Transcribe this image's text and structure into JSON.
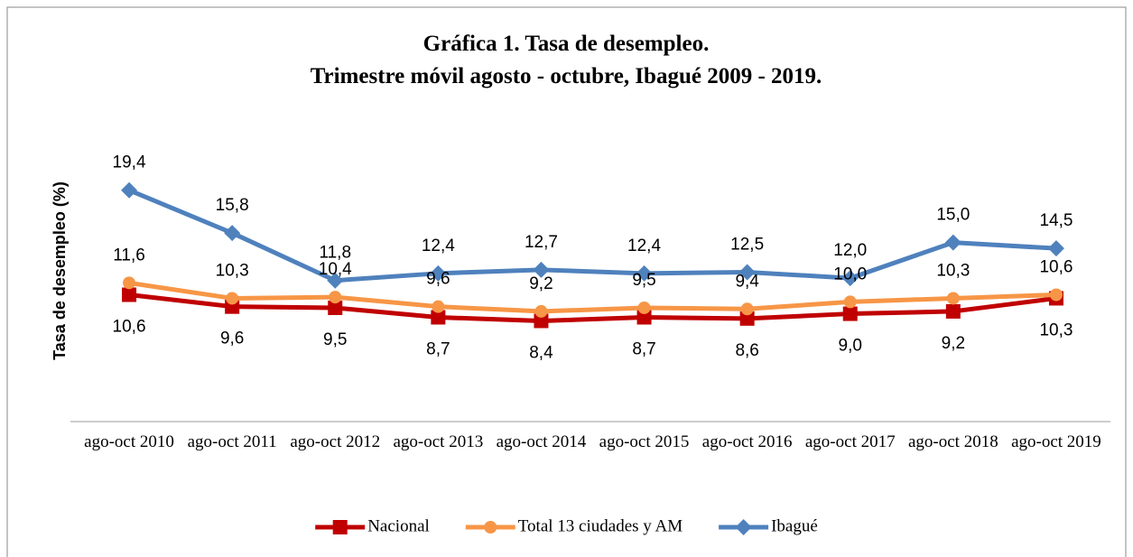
{
  "chart_data": {
    "type": "line",
    "title": [
      "Gráfica 1. Tasa de desempleo.",
      "Trimestre móvil agosto - octubre, Ibagué 2009 - 2019."
    ],
    "y_label": "Tasa de desempleo (%)",
    "categories": [
      "ago-oct 2010",
      "ago-oct 2011",
      "ago-oct 2012",
      "ago-oct 2013",
      "ago-oct 2014",
      "ago-oct 2015",
      "ago-oct 2016",
      "ago-oct 2017",
      "ago-oct 2018",
      "ago-oct 2019"
    ],
    "ylim": [
      0,
      25
    ],
    "legend": "bottom",
    "series": [
      {
        "name": "Nacional",
        "color": "#c00000",
        "marker": "square",
        "label_position": "below",
        "values": [
          10.6,
          9.6,
          9.5,
          8.7,
          8.4,
          8.7,
          8.6,
          9.0,
          9.2,
          10.3
        ],
        "value_labels": [
          "10,6",
          "9,6",
          "9,5",
          "8,7",
          "8,4",
          "8,7",
          "8,6",
          "9,0",
          "9,2",
          "10,3"
        ]
      },
      {
        "name": "Total 13 ciudades y AM",
        "color": "#f79646",
        "marker": "circle",
        "label_position": "above",
        "values": [
          11.6,
          10.3,
          10.4,
          9.6,
          9.2,
          9.5,
          9.4,
          10.0,
          10.3,
          10.6
        ],
        "value_labels": [
          "11,6",
          "10,3",
          "10,4",
          "9,6",
          "9,2",
          "9,5",
          "9,4",
          "10,0",
          "10,3",
          "10,6"
        ]
      },
      {
        "name": "Ibagué",
        "color": "#4f81bd",
        "marker": "diamond",
        "label_position": "above",
        "values": [
          19.4,
          15.8,
          11.8,
          12.4,
          12.7,
          12.4,
          12.5,
          12.0,
          15.0,
          14.5
        ],
        "value_labels": [
          "19,4",
          "15,8",
          "11,8",
          "12,4",
          "12,7",
          "12,4",
          "12,5",
          "12,0",
          "15,0",
          "14,5"
        ]
      }
    ]
  }
}
